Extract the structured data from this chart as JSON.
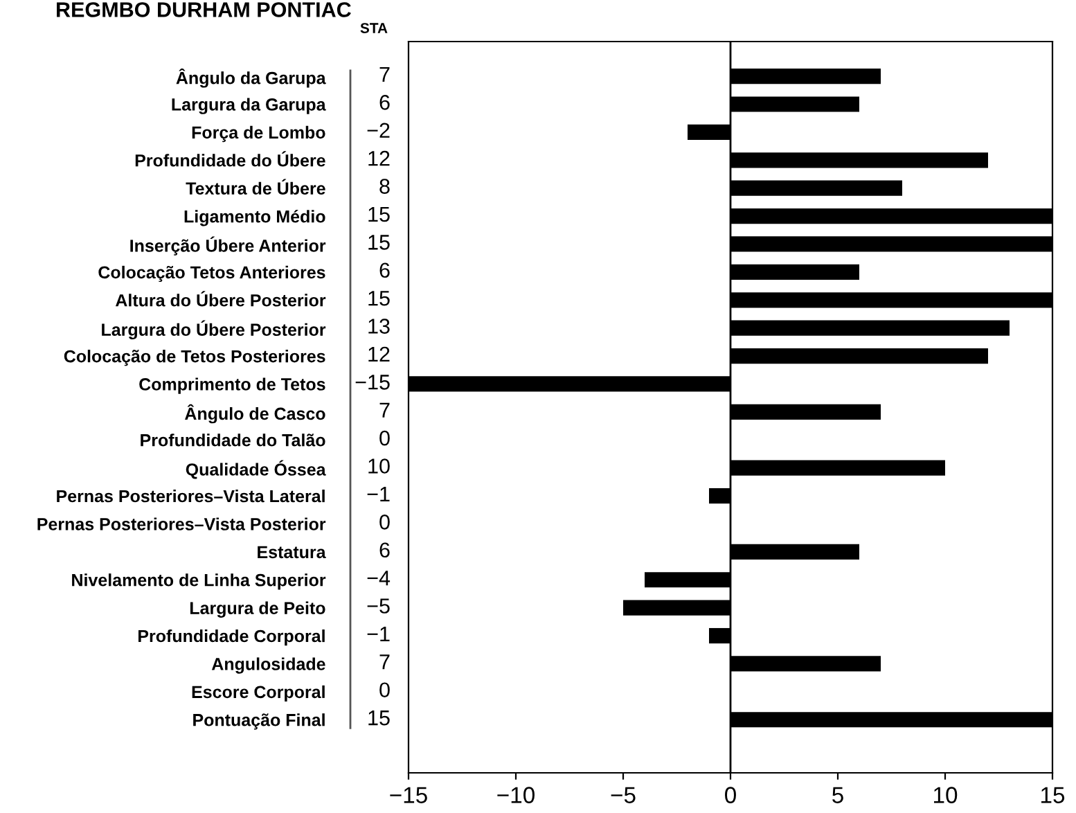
{
  "chart_data": {
    "type": "bar",
    "orientation": "horizontal",
    "title": "REGMBO DURHAM PONTIAC",
    "annotations": [
      "STA"
    ],
    "categories": [
      "Ângulo da Garupa",
      "Largura da Garupa",
      "Força de Lombo",
      "Profundidade do Úbere",
      "Textura de Úbere",
      "Ligamento Médio",
      "Inserção Úbere Anterior",
      "Colocação Tetos Anteriores",
      "Altura do Úbere Posterior",
      "Largura do Úbere Posterior",
      "Colocação de Tetos Posteriores",
      "Comprimento de Tetos",
      "Ângulo de Casco",
      "Profundidade do Talão",
      "Qualidade Óssea",
      "Pernas Posteriores–Vista Lateral",
      "Pernas Posteriores–Vista Posterior",
      "Estatura",
      "Nivelamento de Linha Superior",
      "Largura de Peito",
      "Profundidade Corporal",
      "Angulosidade",
      "Escore Corporal",
      "Pontuação Final"
    ],
    "values": [
      7,
      6,
      -2,
      12,
      8,
      15,
      15,
      6,
      15,
      13,
      12,
      -15,
      7,
      0,
      10,
      -1,
      0,
      6,
      -4,
      -5,
      -1,
      7,
      0,
      15
    ],
    "value_labels": [
      "7",
      "6",
      "−2",
      "12",
      "8",
      "15",
      "15",
      "6",
      "15",
      "13",
      "12",
      "−15",
      "7",
      "0",
      "10",
      "−1",
      "0",
      "6",
      "−4",
      "−5",
      "−1",
      "7",
      "0",
      "15"
    ],
    "color": "#000000",
    "xlim": [
      -15,
      15
    ],
    "xticks": [
      {
        "value": -15,
        "label": "−15"
      },
      {
        "value": -10,
        "label": "−10"
      },
      {
        "value": -5,
        "label": "−5"
      },
      0,
      5,
      10,
      15
    ],
    "ref_lines": [
      {
        "axis": "x",
        "value": 0,
        "color": "#000000"
      }
    ],
    "grid": false,
    "legend": false
  }
}
